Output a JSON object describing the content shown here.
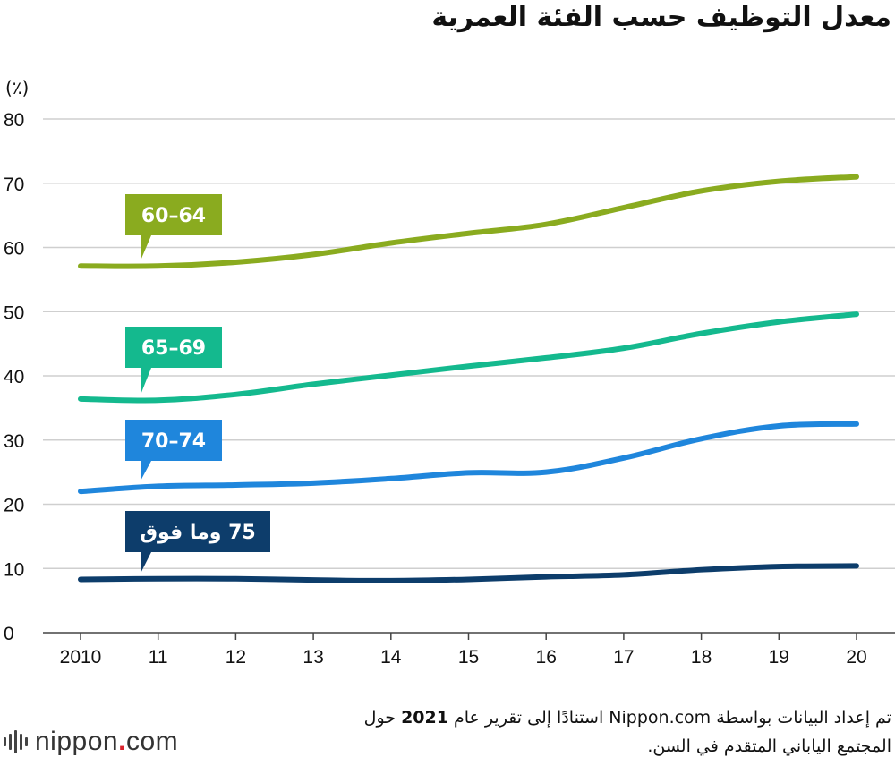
{
  "title": "معدل التوظيف حسب الفئة العمرية",
  "unit_label": "(٪)",
  "chart_data": {
    "type": "line",
    "title": "معدل التوظيف حسب الفئة العمرية",
    "ylabel": "(٪)",
    "xlabel": "",
    "ylim": [
      0,
      80
    ],
    "yticks": [
      0,
      10,
      20,
      30,
      40,
      50,
      60,
      70,
      80
    ],
    "grid": true,
    "categories": [
      "2010",
      "11",
      "12",
      "13",
      "14",
      "15",
      "16",
      "17",
      "18",
      "19",
      "20"
    ],
    "series": [
      {
        "name": "64–60",
        "color": "#8aab1f",
        "values": [
          57.1,
          57.1,
          57.7,
          58.9,
          60.7,
          62.2,
          63.6,
          66.2,
          68.8,
          70.3,
          71.0
        ]
      },
      {
        "name": "69–65",
        "color": "#14b98e",
        "values": [
          36.4,
          36.2,
          37.1,
          38.7,
          40.1,
          41.5,
          42.8,
          44.3,
          46.6,
          48.4,
          49.6
        ]
      },
      {
        "name": "74–70",
        "color": "#1f86dc",
        "values": [
          22.0,
          22.8,
          23.0,
          23.3,
          24.0,
          24.9,
          25.0,
          27.2,
          30.2,
          32.2,
          32.5
        ]
      },
      {
        "name": "75 وما فوق",
        "color": "#0d3d6b",
        "values": [
          8.3,
          8.4,
          8.4,
          8.2,
          8.1,
          8.3,
          8.7,
          9.0,
          9.8,
          10.3,
          10.4
        ]
      }
    ]
  },
  "source": {
    "line1_pre": "تم إعداد البيانات بواسطة Nippon.com استنادًا إلى تقرير عام ",
    "year": "2021",
    "line1_post": " حول",
    "line2": "المجتمع الياباني المتقدم في السن."
  },
  "logo": {
    "name": "nippon",
    "dot": ".",
    "tld": "com"
  }
}
